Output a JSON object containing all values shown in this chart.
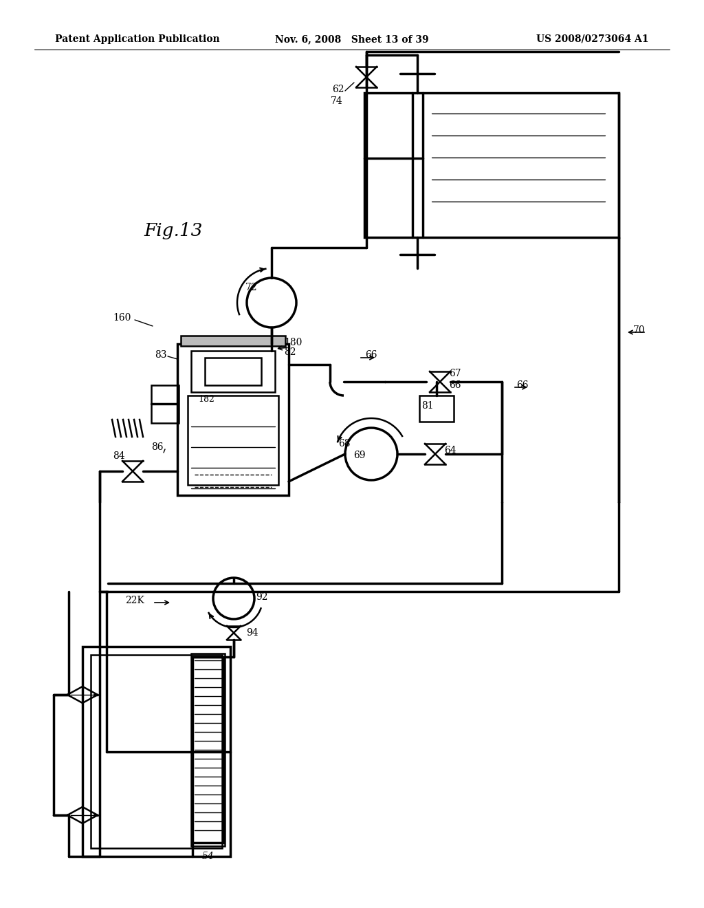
{
  "bg_color": "#ffffff",
  "line_color": "#000000",
  "header_left": "Patent Application Publication",
  "header_center": "Nov. 6, 2008   Sheet 13 of 39",
  "header_right": "US 2008/0273064 A1",
  "fig_label": "Fig.13",
  "lw_thin": 1.0,
  "lw_med": 1.8,
  "lw_thick": 2.5
}
